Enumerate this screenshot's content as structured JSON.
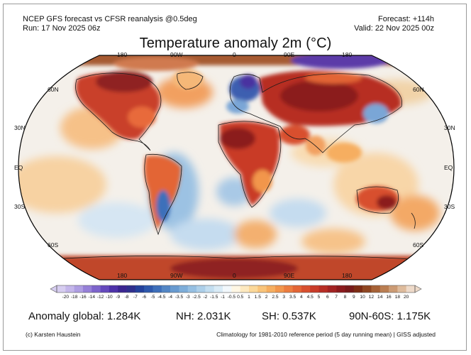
{
  "header": {
    "model_line": "NCEP GFS forecast vs CFSR reanalysis @0.5deg",
    "run_line": "Run: 17 Nov 2025 06z",
    "forecast_line": "Forecast: +114h",
    "valid_line": "Valid: 22 Nov 2025 00z"
  },
  "title": "Temperature anomaly 2m (°C)",
  "axes": {
    "lon_labels": [
      "180",
      "90W",
      "0",
      "90E",
      "180"
    ],
    "lat_labels": [
      "60N",
      "30N",
      "EQ",
      "30S",
      "60S"
    ]
  },
  "colorbar": {
    "ticks": [
      "-20",
      "-18",
      "-16",
      "-14",
      "-12",
      "-10",
      "-9",
      "-8",
      "-7",
      "-6",
      "-5",
      "-4.5",
      "-4",
      "-3.5",
      "-3",
      "-2.5",
      "-2",
      "-1.5",
      "-1",
      "-0.5",
      "0.5",
      "1",
      "1.5",
      "2",
      "2.5",
      "3",
      "3.5",
      "4",
      "4.5",
      "5",
      "6",
      "7",
      "8",
      "9",
      "10",
      "12",
      "14",
      "16",
      "18",
      "20"
    ],
    "colors": [
      "#d6cdf0",
      "#c4b6ea",
      "#ae9ee2",
      "#9680d8",
      "#7d64cc",
      "#6549bd",
      "#4d31a9",
      "#3a2591",
      "#2e2f8e",
      "#23419c",
      "#2d58ac",
      "#3d6fba",
      "#5286c5",
      "#679ad0",
      "#7dadd9",
      "#95bfe2",
      "#accfe9",
      "#c3def0",
      "#d9ebf6",
      "#f2f8fc",
      "#fff7e4",
      "#fde9bf",
      "#fbd899",
      "#f9c47a",
      "#f6ae60",
      "#f2964c",
      "#ec7d3f",
      "#e36535",
      "#d84f2e",
      "#c93b28",
      "#b72d24",
      "#a22222",
      "#8b1a1d",
      "#771a1a",
      "#7c2c14",
      "#8f4621",
      "#a66136",
      "#ba7e52",
      "#cc9b74",
      "#debb9c",
      "#eedac9"
    ]
  },
  "stats": {
    "global": "Anomaly global: 1.284K",
    "nh": "NH: 2.031K",
    "sh": "SH: 0.537K",
    "band": "90N-60S: 1.175K"
  },
  "footer": {
    "credit": "(c) Karsten Haustein",
    "climatology": "Climatology for 1981-2010 reference period (5 day running mean) | GISS adjusted"
  },
  "map_palette": {
    "ocean_neutral": "#f4f0ea",
    "warm_light": "#f7c98f",
    "warm": "#e0602e",
    "warm_strong": "#b32626",
    "warm_deep": "#7c1a1a",
    "cool_light": "#c5dcef",
    "cool": "#6b9bcf",
    "cool_strong": "#2e4fa0",
    "purple": "#5b3aa8",
    "coast": "#1a1a1a"
  }
}
